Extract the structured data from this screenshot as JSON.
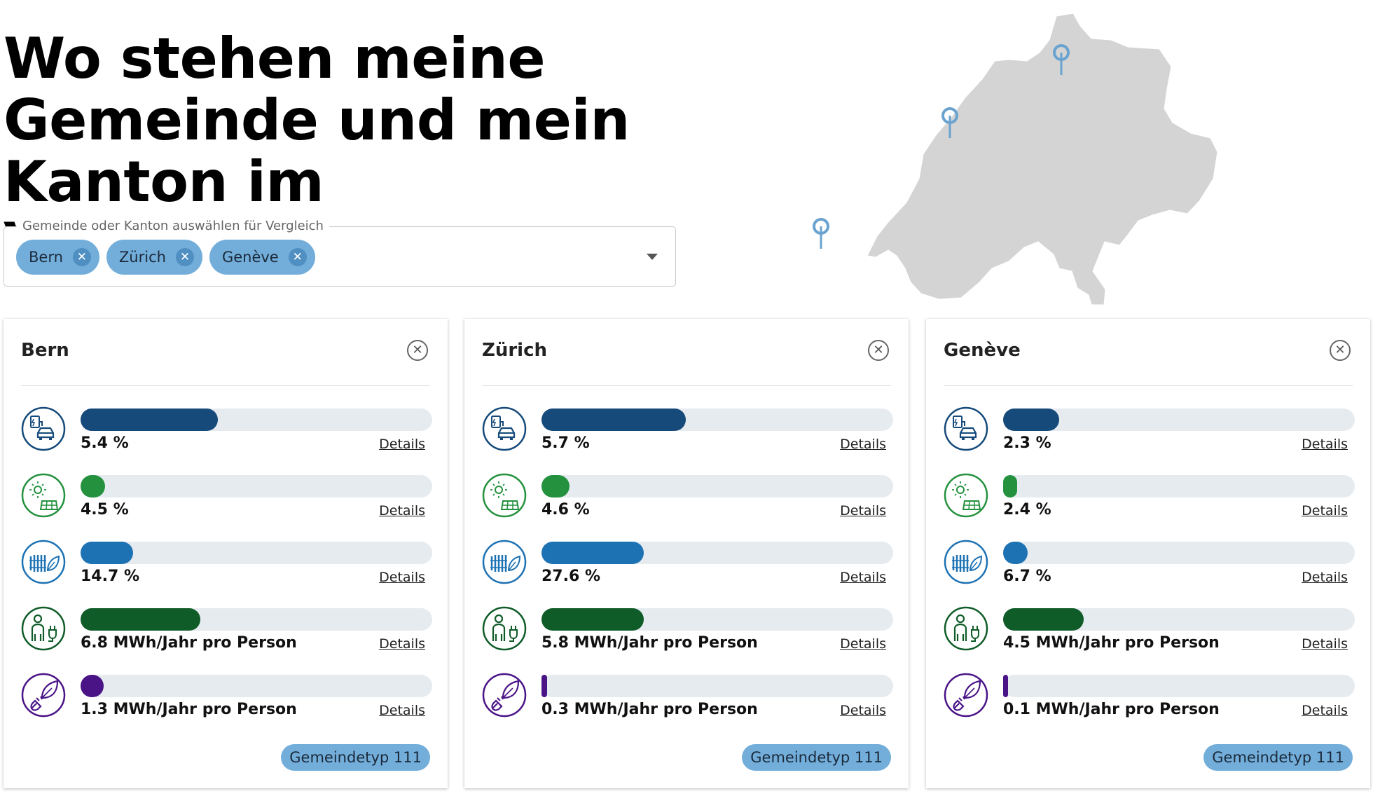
{
  "header": {
    "title": "Wo stehen meine Gemeinde und mein Kanton im Vergleich?"
  },
  "picker": {
    "legend": "Gemeinde oder Kanton auswählen für Vergleich",
    "chips": [
      "Bern",
      "Zürich",
      "Genève"
    ],
    "chip_remove_glyph": "✕"
  },
  "map": {
    "country_fill": "#d4d4d4",
    "pin_color": "#6aa3cf"
  },
  "colors": {
    "ev": "#154a7a",
    "solar": "#24913f",
    "heating": "#1d72b4",
    "power_consumption": "#0f5c28",
    "renewable": "#4a1487",
    "chip": "#73aedb",
    "track": "#e6ebf0"
  },
  "details_label": "Details",
  "close_glyph": "✕",
  "cards": [
    {
      "name": "Bern",
      "type_badge": "Gemeindetyp 111",
      "metrics": [
        {
          "icon": "ev-charging-car-icon",
          "value": "5.4 %",
          "fill_fraction": 0.39
        },
        {
          "icon": "solar-panel-icon",
          "value": "4.5 %",
          "fill_fraction": 0.07
        },
        {
          "icon": "renewable-heating-icon",
          "value": "14.7 %",
          "fill_fraction": 0.15
        },
        {
          "icon": "person-power-plug-icon",
          "value": "6.8 MWh/Jahr pro Person",
          "fill_fraction": 0.34
        },
        {
          "icon": "leaf-plug-icon",
          "value": "1.3 MWh/Jahr pro Person",
          "fill_fraction": 0.065
        }
      ]
    },
    {
      "name": "Zürich",
      "type_badge": "Gemeindetyp 111",
      "metrics": [
        {
          "icon": "ev-charging-car-icon",
          "value": "5.7 %",
          "fill_fraction": 0.41
        },
        {
          "icon": "solar-panel-icon",
          "value": "4.6 %",
          "fill_fraction": 0.08
        },
        {
          "icon": "renewable-heating-icon",
          "value": "27.6 %",
          "fill_fraction": 0.29
        },
        {
          "icon": "person-power-plug-icon",
          "value": "5.8 MWh/Jahr pro Person",
          "fill_fraction": 0.29
        },
        {
          "icon": "leaf-plug-icon",
          "value": "0.3 MWh/Jahr pro Person",
          "fill_fraction": 0.015
        }
      ]
    },
    {
      "name": "Genève",
      "type_badge": "Gemeindetyp 111",
      "metrics": [
        {
          "icon": "ev-charging-car-icon",
          "value": "2.3 %",
          "fill_fraction": 0.16
        },
        {
          "icon": "solar-panel-icon",
          "value": "2.4 %",
          "fill_fraction": 0.04
        },
        {
          "icon": "renewable-heating-icon",
          "value": "6.7 %",
          "fill_fraction": 0.07
        },
        {
          "icon": "person-power-plug-icon",
          "value": "4.5 MWh/Jahr pro Person",
          "fill_fraction": 0.23
        },
        {
          "icon": "leaf-plug-icon",
          "value": "0.1 MWh/Jahr pro Person",
          "fill_fraction": 0.008
        }
      ]
    }
  ]
}
